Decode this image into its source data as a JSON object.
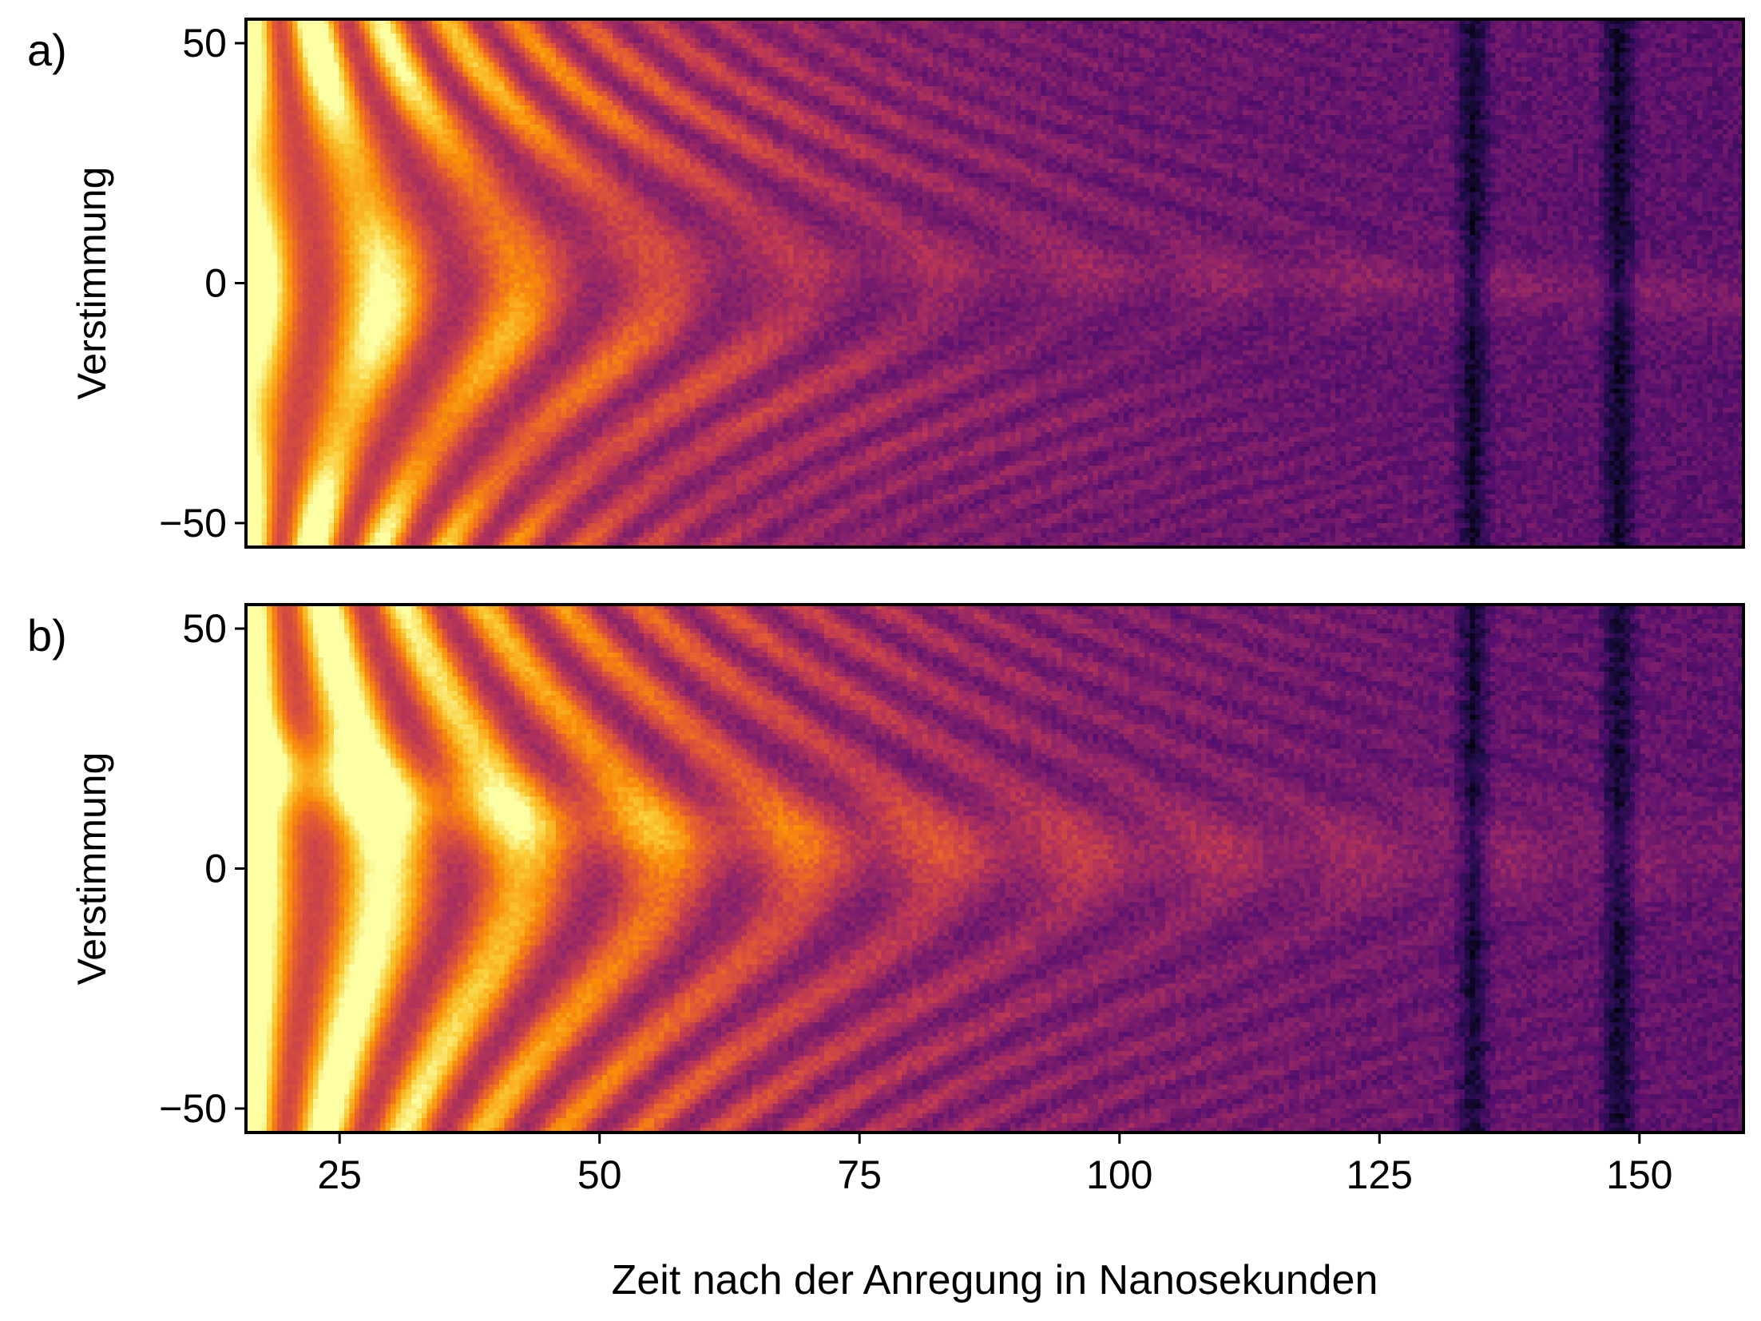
{
  "chart_data": [
    {
      "type": "heatmap",
      "panel_label": "a)",
      "xlabel": "",
      "ylabel": "Verstimmung",
      "xlim": [
        16,
        160
      ],
      "ylim": [
        -55,
        55
      ],
      "xticks": [],
      "yticks": [
        -50,
        0,
        50
      ],
      "ytick_labels": [
        "−50",
        "0",
        "50"
      ],
      "colormap": "inferno",
      "pattern": {
        "description_values": "oscillation lobes symmetric pattern",
        "fringe_period_ns": 13.5,
        "decay_ns": 40,
        "dark_columns_x": [
          134,
          148
        ],
        "center_y": 0
      }
    },
    {
      "type": "heatmap",
      "panel_label": "b)",
      "xlabel": "Zeit nach der Anregung in Nanosekunden",
      "ylabel": "Verstimmung",
      "xlim": [
        16,
        160
      ],
      "ylim": [
        -55,
        55
      ],
      "xticks": [
        25,
        50,
        75,
        100,
        125,
        150
      ],
      "xtick_labels": [
        "25",
        "50",
        "75",
        "100",
        "125",
        "150"
      ],
      "yticks": [
        -50,
        0,
        50
      ],
      "ytick_labels": [
        "−50",
        "0",
        "50"
      ],
      "colormap": "inferno",
      "pattern": {
        "fringe_period_ns": 13.5,
        "decay_ns": 45,
        "dark_columns_x": [
          134,
          148
        ],
        "center_band_y": 3
      }
    }
  ]
}
